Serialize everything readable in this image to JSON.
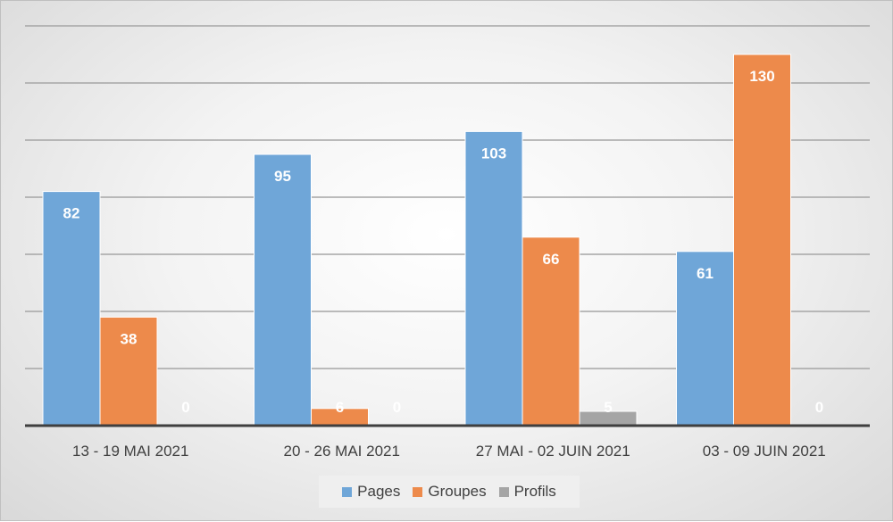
{
  "chart_data": {
    "type": "bar",
    "categories": [
      "13 - 19 MAI 2021",
      "20 - 26 MAI 2021",
      "27 MAI - 02 JUIN 2021",
      "03 - 09 JUIN 2021"
    ],
    "series": [
      {
        "name": "Pages",
        "color": "#6fa6d8",
        "values": [
          82,
          95,
          103,
          61
        ]
      },
      {
        "name": "Groupes",
        "color": "#ed8a4b",
        "values": [
          38,
          6,
          66,
          130
        ]
      },
      {
        "name": "Profils",
        "color": "#a5a5a5",
        "values": [
          0,
          0,
          5,
          0
        ]
      }
    ],
    "title": "",
    "xlabel": "",
    "ylabel": "",
    "ylim": [
      0,
      140
    ],
    "grid": true,
    "legend_position": "bottom",
    "data_labels": true
  }
}
